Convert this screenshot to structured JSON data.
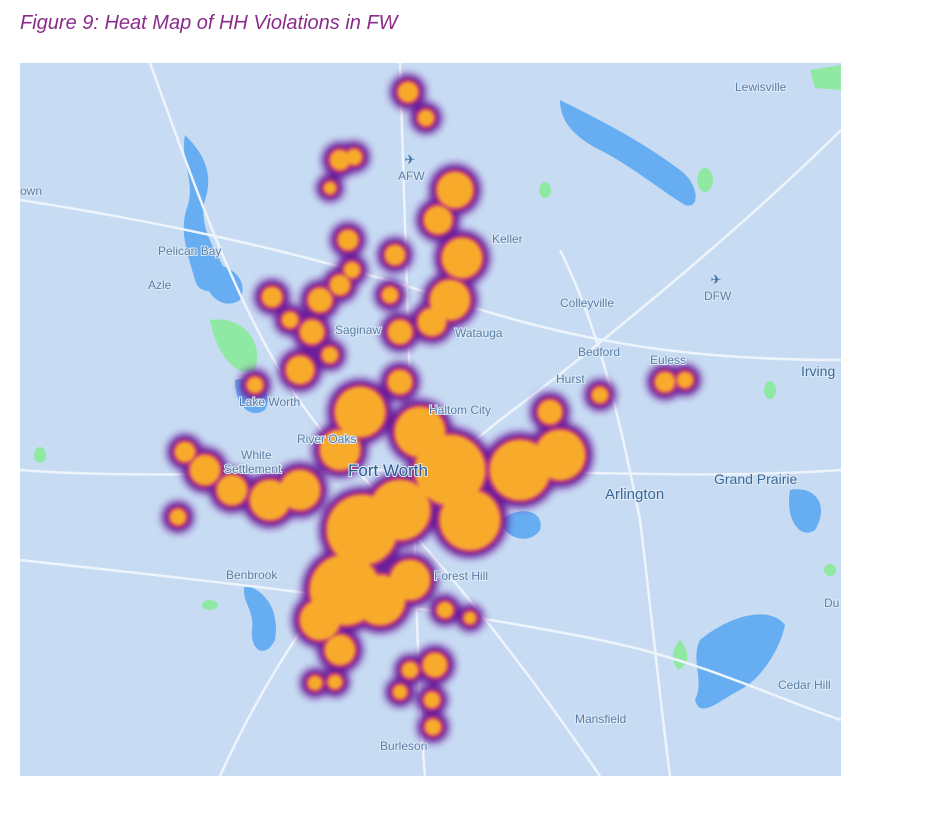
{
  "figure": {
    "title": "Figure 9: Heat Map of HH Violations in FW"
  },
  "map": {
    "labels": [
      "own",
      "Lewisville",
      "AFW",
      "Keller",
      "Pelican Bay",
      "Azle",
      "DFW",
      "Colleyville",
      "Saginaw",
      "Watauga",
      "Bedford",
      "Euless",
      "Irving",
      "Hurst",
      "Lake Worth",
      "Haltom City",
      "River Oaks",
      "White",
      "Settlement",
      "Fort Worth",
      "Arlington",
      "Grand Prairie",
      "Benbrook",
      "Forest Hill",
      "Du",
      "Cedar Hill",
      "Mansfield",
      "Burleson"
    ]
  }
}
